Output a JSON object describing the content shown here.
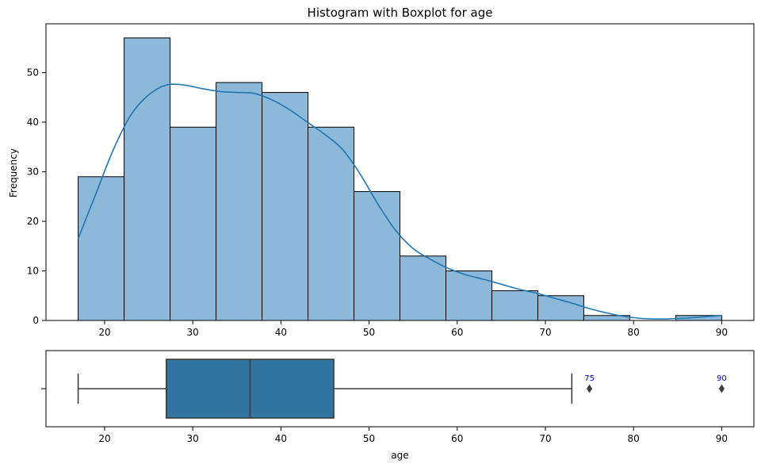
{
  "chart_data": [
    {
      "type": "bar",
      "title": "Histogram with Boxplot for age",
      "xlabel": "",
      "ylabel": "Frequency",
      "xlim": [
        13.35,
        93.65
      ],
      "ylim": [
        0,
        59.85
      ],
      "xticks": [
        20,
        30,
        40,
        50,
        60,
        70,
        80,
        90
      ],
      "yticks": [
        0,
        10,
        20,
        30,
        40,
        50
      ],
      "bin_edges": [
        17.0,
        22.2143,
        27.4286,
        32.6429,
        37.8571,
        43.0714,
        48.2857,
        53.5,
        58.7143,
        63.9286,
        69.1429,
        74.3571,
        79.5714,
        84.7857,
        90.0
      ],
      "values": [
        29,
        57,
        39,
        48,
        46,
        39,
        26,
        13,
        10,
        6,
        5,
        1,
        0,
        1
      ],
      "kde": {
        "x": [
          17,
          19,
          21,
          23,
          25,
          27,
          29,
          31,
          33,
          35,
          37,
          39,
          41,
          43,
          45,
          47,
          49,
          51,
          53,
          55,
          57,
          59,
          61,
          63,
          65,
          67,
          69,
          71,
          73,
          75,
          77,
          79,
          81,
          83,
          85,
          87,
          90
        ],
        "y": [
          16.5,
          25.5,
          34.5,
          41.5,
          45.5,
          47.5,
          47.5,
          46.8,
          46.2,
          46.0,
          45.8,
          44.5,
          42.5,
          40.0,
          37.5,
          34.5,
          29.5,
          23.5,
          18.2,
          14.5,
          12.3,
          10.5,
          9.2,
          8.3,
          7.3,
          6.3,
          5.5,
          4.5,
          3.5,
          2.4,
          1.5,
          0.8,
          0.4,
          0.3,
          0.4,
          0.6,
          1.0
        ]
      },
      "bar_color": "#8cb8d9",
      "line_color": "#1f77b4",
      "grid": false
    },
    {
      "type": "boxplot",
      "xlabel": "age",
      "xlim": [
        13.35,
        93.65
      ],
      "xticks": [
        20,
        30,
        40,
        50,
        60,
        70,
        80,
        90
      ],
      "ytick_label": "",
      "whisker_low": 17,
      "q1": 27,
      "median": 36.5,
      "q3": 46,
      "whisker_high": 73,
      "outliers": [
        75,
        90
      ],
      "outlier_labels": [
        "75",
        "90"
      ],
      "box_color": "#3274a1",
      "outlier_label_color": "#0000cc",
      "grid": false
    }
  ]
}
